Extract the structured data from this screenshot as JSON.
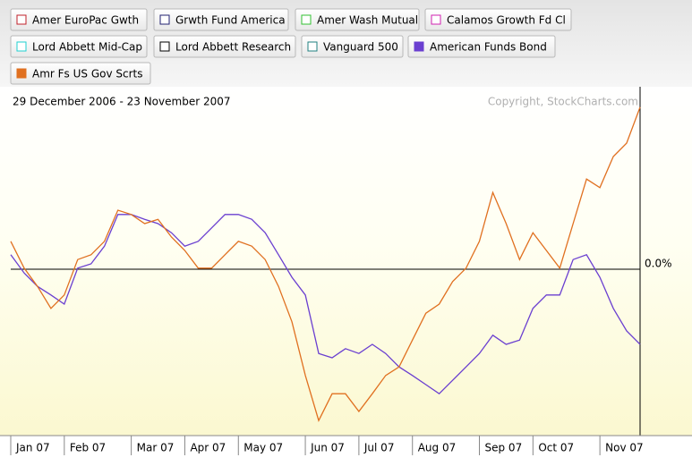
{
  "chart_data": {
    "type": "line",
    "subtitle": "29 December 2006 - 23 November 2007",
    "annotation": "Copyright, StockCharts.com",
    "categories": [
      "Jan 07",
      null,
      null,
      null,
      "Feb 07",
      null,
      null,
      null,
      null,
      "Mar 07",
      null,
      null,
      null,
      "Apr 07",
      null,
      null,
      null,
      "May 07",
      null,
      null,
      null,
      null,
      "Jun 07",
      null,
      null,
      null,
      "Jul 07",
      null,
      null,
      null,
      "Aug 07",
      null,
      null,
      null,
      null,
      "Sep 07",
      null,
      null,
      null,
      "Oct 07",
      null,
      null,
      null,
      null,
      "Nov 07",
      null,
      null,
      null
    ],
    "ylim": [
      -3.1,
      3.4
    ],
    "yticks": [
      {
        "value": 0,
        "label": "0.0%"
      }
    ],
    "series": [
      {
        "name": "Amer EuroPac Gwth",
        "color": "#c0202a"
      },
      {
        "name": "Grwth Fund America",
        "color": "#202070"
      },
      {
        "name": "Amer Wash Mutual",
        "color": "#30c030"
      },
      {
        "name": "Calamos Growth Fd Cl",
        "color": "#d020b0"
      },
      {
        "name": "Lord Abbett Mid-Cap",
        "color": "#20d0d0"
      },
      {
        "name": "Lord Abbett Research",
        "color": "#000000"
      },
      {
        "name": "Vanguard 500",
        "color": "#208080"
      },
      {
        "name": "American Funds Bond",
        "color": "#6a3fd0",
        "values": [
          0.27,
          -0.07,
          -0.32,
          -0.48,
          -0.65,
          0.02,
          0.1,
          0.43,
          1.02,
          1.02,
          0.93,
          0.85,
          0.68,
          0.43,
          0.52,
          0.77,
          1.02,
          1.02,
          0.93,
          0.68,
          0.27,
          -0.15,
          -0.48,
          -1.57,
          -1.65,
          -1.48,
          -1.57,
          -1.4,
          -1.57,
          -1.82,
          -1.98,
          -2.15,
          -2.32,
          -2.07,
          -1.82,
          -1.57,
          -1.23,
          -1.4,
          -1.32,
          -0.73,
          -0.48,
          -0.48,
          0.18,
          0.27,
          -0.15,
          -0.73,
          -1.15,
          -1.4
        ]
      },
      {
        "name": "Amr Fs US Gov Scrts",
        "color": "#e07020",
        "values": [
          0.52,
          0.02,
          -0.32,
          -0.73,
          -0.48,
          0.18,
          0.27,
          0.52,
          1.1,
          1.02,
          0.85,
          0.93,
          0.6,
          0.35,
          0.02,
          0.02,
          0.27,
          0.52,
          0.43,
          0.18,
          -0.32,
          -0.98,
          -1.98,
          -2.82,
          -2.32,
          -2.32,
          -2.65,
          -2.32,
          -1.98,
          -1.82,
          -1.32,
          -0.82,
          -0.65,
          -0.23,
          0.02,
          0.52,
          1.43,
          0.85,
          0.18,
          0.68,
          0.35,
          0.02,
          0.85,
          1.68,
          1.52,
          2.1,
          2.35,
          3.02
        ]
      }
    ]
  }
}
